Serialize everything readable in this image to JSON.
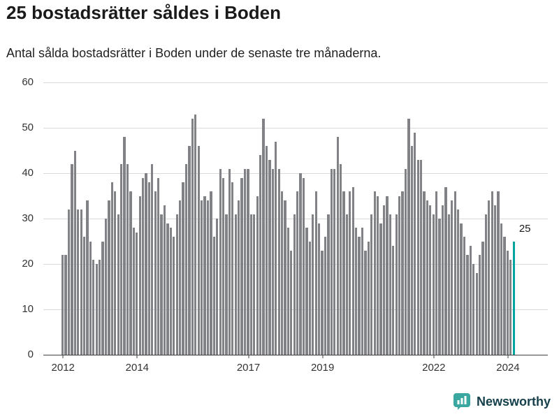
{
  "title": "25 bostadsrätter såldes i Boden",
  "subtitle": "Antal sålda bostadsrätter i Boden under de senaste tre månaderna.",
  "annotation": "25",
  "logo": {
    "text": "Newsworthy"
  },
  "colors": {
    "bar": "#808285",
    "highlight": "#00a5a2",
    "grid": "#d9d9d9",
    "axis": "#404040",
    "text": "#1a1a1a",
    "tick": "#333333",
    "logo_icon": "#3aa8a0",
    "logo_text": "#16404b"
  },
  "chart_data": {
    "type": "bar",
    "title": "25 bostadsrätter såldes i Boden",
    "subtitle": "Antal sålda bostadsrätter i Boden under de senaste tre månaderna.",
    "x_start": "2012-01",
    "x_freq": "monthly",
    "values": [
      22,
      22,
      32,
      42,
      45,
      32,
      32,
      26,
      34,
      25,
      21,
      20,
      21,
      25,
      30,
      34,
      38,
      36,
      31,
      42,
      48,
      42,
      36,
      28,
      27,
      35,
      39,
      40,
      38,
      42,
      36,
      39,
      31,
      33,
      29,
      28,
      26,
      31,
      34,
      38,
      42,
      46,
      52,
      53,
      46,
      34,
      35,
      34,
      36,
      26,
      30,
      41,
      39,
      31,
      41,
      38,
      31,
      34,
      39,
      41,
      41,
      31,
      31,
      35,
      44,
      52,
      46,
      43,
      41,
      47,
      41,
      36,
      34,
      28,
      23,
      31,
      36,
      40,
      39,
      28,
      25,
      31,
      36,
      29,
      23,
      26,
      31,
      41,
      41,
      48,
      42,
      36,
      31,
      36,
      37,
      28,
      26,
      28,
      23,
      25,
      31,
      36,
      35,
      29,
      33,
      35,
      31,
      24,
      31,
      35,
      36,
      41,
      52,
      46,
      49,
      43,
      43,
      36,
      34,
      33,
      31,
      36,
      30,
      33,
      37,
      31,
      34,
      36,
      32,
      29,
      26,
      22,
      24,
      20,
      18,
      22,
      25,
      31,
      34,
      36,
      33,
      36,
      29,
      26,
      23,
      21,
      25
    ],
    "highlight_index": 146,
    "highlight_value_label": "25",
    "ylim": [
      0,
      60
    ],
    "yticks": [
      0,
      10,
      20,
      30,
      40,
      50,
      60
    ],
    "xticks": [
      {
        "label": "2012",
        "month_index": 0
      },
      {
        "label": "2014",
        "month_index": 24
      },
      {
        "label": "2017",
        "month_index": 60
      },
      {
        "label": "2019",
        "month_index": 84
      },
      {
        "label": "2022",
        "month_index": 120
      },
      {
        "label": "2024",
        "month_index": 144
      }
    ],
    "grid": "horizontal",
    "legend": "none"
  }
}
